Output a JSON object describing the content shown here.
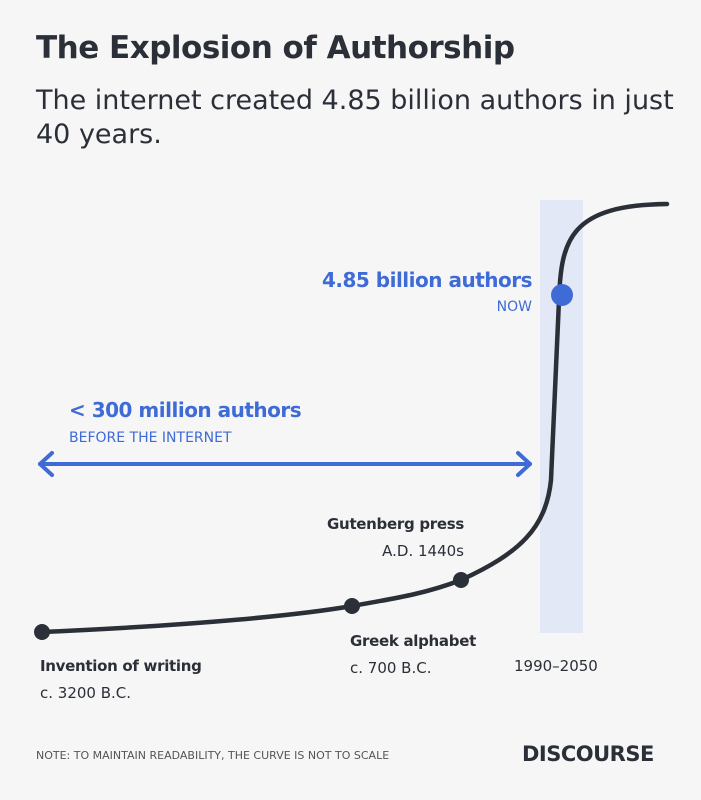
{
  "title": "The Explosion of Authorship",
  "subtitle": "The internet created 4.85 billion authors in just 40 years.",
  "now": {
    "value": "4.85 billion authors",
    "label": "NOW"
  },
  "before": {
    "value": "< 300 million authors",
    "label": "BEFORE THE INTERNET"
  },
  "milestones": [
    {
      "name": "Invention of writing",
      "date": "c. 3200 B.C."
    },
    {
      "name": "Greek alphabet",
      "date": "c. 700 B.C."
    },
    {
      "name": "Gutenberg press",
      "date": "A.D. 1440s"
    }
  ],
  "era_label": "1990–2050",
  "note": "NOTE: TO MAINTAIN READABILITY,  THE CURVE IS NOT TO SCALE",
  "brand": "DISCOURSE",
  "colors": {
    "accent": "#3f6bd6",
    "curve": "#2b2f38",
    "band": "#e3e8f7",
    "background": "#f6f6f6"
  }
}
